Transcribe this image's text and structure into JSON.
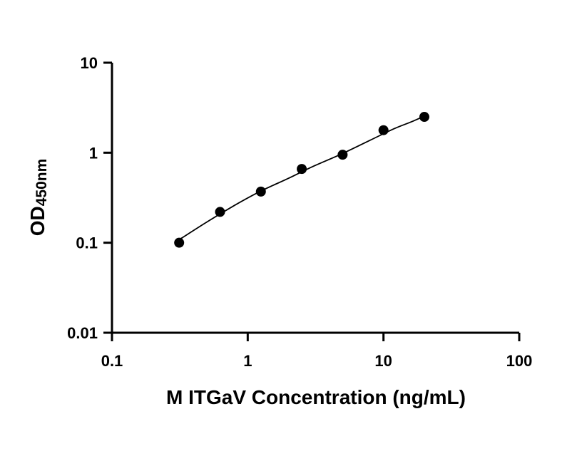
{
  "chart_data": {
    "type": "scatter",
    "title": "",
    "xlabel": "M ITGaV Concentration (ng/mL)",
    "ylabel": {
      "main": "OD",
      "subscript": "450nm"
    },
    "x_scale": "log",
    "y_scale": "log",
    "xlim": [
      0.1,
      100
    ],
    "ylim": [
      0.01,
      10
    ],
    "x_ticks": [
      {
        "value": 0.1,
        "label": "0.1"
      },
      {
        "value": 1,
        "label": "1"
      },
      {
        "value": 10,
        "label": "10"
      },
      {
        "value": 100,
        "label": "100"
      }
    ],
    "y_ticks": [
      {
        "value": 0.01,
        "label": "0.01"
      },
      {
        "value": 0.1,
        "label": "0.1"
      },
      {
        "value": 1,
        "label": "1"
      },
      {
        "value": 10,
        "label": "10"
      }
    ],
    "grid": false,
    "legend": "none",
    "series": [
      {
        "x": [
          0.3125,
          0.625,
          1.25,
          2.5,
          5,
          10,
          20
        ],
        "y": [
          0.1,
          0.22,
          0.37,
          0.66,
          0.95,
          1.78,
          2.5
        ],
        "marker": "circle",
        "color": "#000000"
      }
    ],
    "fit_curve": {
      "x": [
        0.3125,
        0.5,
        0.8,
        1.25,
        2,
        3,
        5,
        8,
        12,
        16,
        20
      ],
      "y": [
        0.108,
        0.17,
        0.26,
        0.375,
        0.52,
        0.7,
        0.98,
        1.38,
        1.85,
        2.2,
        2.55
      ],
      "color": "#000000"
    }
  }
}
